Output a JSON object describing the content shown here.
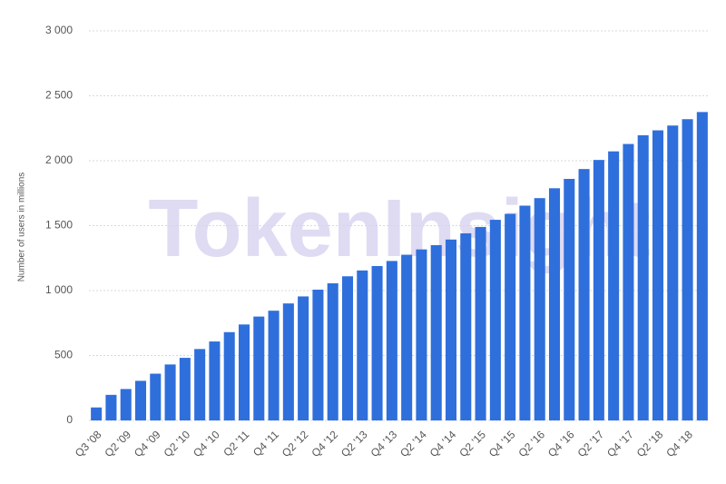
{
  "chart_data": {
    "type": "bar",
    "y_label": "Number of users in millions",
    "watermark": "TokenInsight",
    "categories": [
      "Q3 '08",
      null,
      "Q2 '09",
      null,
      "Q4 '09",
      null,
      "Q2 '10",
      null,
      "Q4 '10",
      null,
      "Q2 '11",
      null,
      "Q4 '11",
      null,
      "Q2 '12",
      null,
      "Q4 '12",
      null,
      "Q2 '13",
      null,
      "Q4 '13",
      null,
      "Q2 '14",
      null,
      "Q4 '14",
      null,
      "Q2 '15",
      null,
      "Q4 '15",
      null,
      "Q2 '16",
      null,
      "Q4 '16",
      null,
      "Q2 '17",
      null,
      "Q4 '17",
      null,
      "Q2 '18",
      null,
      "Q4 '18",
      null
    ],
    "values": [
      100,
      197,
      242,
      305,
      360,
      431,
      482,
      550,
      608,
      680,
      739,
      800,
      845,
      901,
      955,
      1007,
      1056,
      1110,
      1155,
      1189,
      1228,
      1276,
      1317,
      1350,
      1393,
      1441,
      1490,
      1545,
      1591,
      1654,
      1712,
      1788,
      1860,
      1936,
      2006,
      2072,
      2129,
      2196,
      2234,
      2271,
      2320,
      2375
    ],
    "color": "#2f6fdc",
    "ylim": [
      0,
      3000
    ],
    "yticks": [
      0,
      500,
      {
        "value": 1000,
        "label": "1 000"
      },
      {
        "value": 1500,
        "label": "1 500"
      },
      {
        "value": 2000,
        "label": "2 000"
      },
      {
        "value": 2500,
        "label": "2 500"
      },
      {
        "value": 3000,
        "label": "3 000"
      }
    ],
    "grid": true
  }
}
